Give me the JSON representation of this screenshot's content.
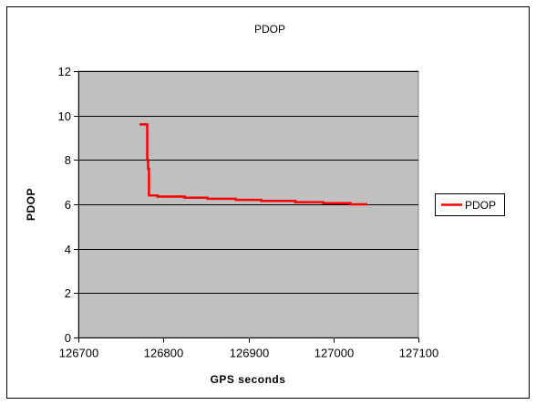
{
  "colors": {
    "plot_background": "#c0c0c0",
    "series_line": "#ff0000",
    "gridline": "#000000",
    "border": "#000000"
  },
  "chart_data": {
    "type": "line",
    "title": "PDOP",
    "xlabel": "GPS seconds",
    "ylabel": "PDOP",
    "xlim": [
      126700,
      127100
    ],
    "ylim": [
      0,
      12
    ],
    "xticks": [
      126700,
      126800,
      126900,
      127000,
      127100
    ],
    "yticks": [
      0,
      2,
      4,
      6,
      8,
      10,
      12
    ],
    "grid": "horizontal",
    "legend": {
      "position": "right",
      "entries": [
        "PDOP"
      ]
    },
    "series": [
      {
        "name": "PDOP",
        "step": true,
        "x": [
          126772,
          126780,
          126781,
          126782,
          126783,
          126793,
          126825,
          126852,
          126885,
          126915,
          126955,
          126988,
          127020,
          127040
        ],
        "y": [
          9.6,
          9.6,
          8.0,
          7.6,
          6.4,
          6.35,
          6.3,
          6.25,
          6.2,
          6.15,
          6.1,
          6.05,
          6.0,
          6.0
        ]
      }
    ]
  }
}
